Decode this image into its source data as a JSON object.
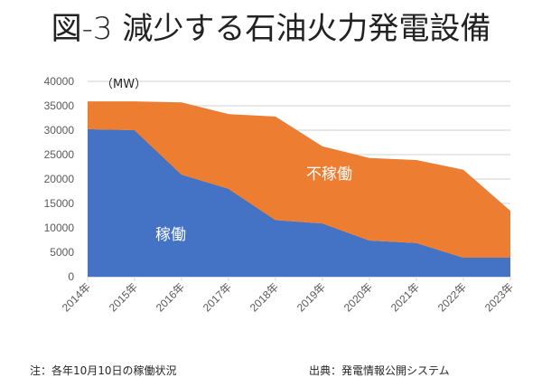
{
  "title": "図-3 減少する石油火力発電設備",
  "footer": {
    "note": "注：各年10月10日の稼働状況",
    "source": "出典：発電情報公開システム"
  },
  "chart_data": {
    "type": "area",
    "stacked": true,
    "title": "図-3 減少する石油火力発電設備",
    "unit_label": "（MW）",
    "xlabel": "",
    "ylabel": "MW",
    "categories": [
      "2014年",
      "2015年",
      "2016年",
      "2017年",
      "2018年",
      "2019年",
      "2020年",
      "2021年",
      "2022年",
      "2023年"
    ],
    "series": [
      {
        "name": "稼働",
        "color": "#4472c4",
        "values": [
          30200,
          30000,
          20900,
          18000,
          11600,
          10900,
          7400,
          6900,
          3900,
          3900
        ]
      },
      {
        "name": "不稼働",
        "color": "#ed7d31",
        "values": [
          5700,
          5900,
          14800,
          15300,
          21200,
          15800,
          16900,
          17000,
          18000,
          9600
        ]
      }
    ],
    "ylim": [
      0,
      40000
    ],
    "yticks": [
      0,
      5000,
      10000,
      15000,
      20000,
      25000,
      30000,
      35000,
      40000
    ],
    "grid": true,
    "legend": "none (inline area labels)",
    "annotations": [
      "稼働",
      "不稼働"
    ],
    "gridline_color": "#d9d9d9"
  }
}
